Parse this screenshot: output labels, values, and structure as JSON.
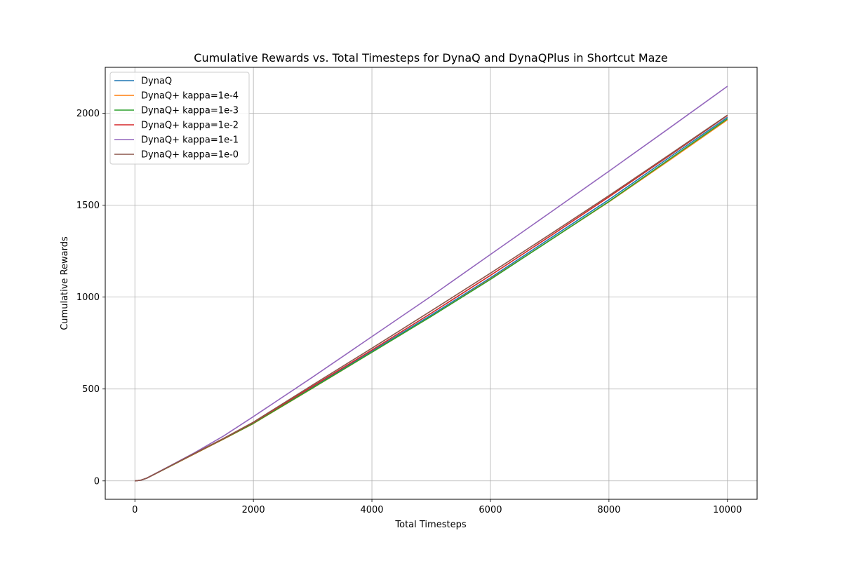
{
  "chart_data": {
    "type": "line",
    "title": "Cumulative Rewards vs. Total Timesteps for DynaQ and DynaQPlus in Shortcut Maze",
    "xlabel": "Total Timesteps",
    "ylabel": "Cumulative Rewards",
    "xlim": [
      -500,
      10500
    ],
    "ylim": [
      -100,
      2250
    ],
    "xticks": [
      0,
      2000,
      4000,
      6000,
      8000,
      10000
    ],
    "yticks": [
      0,
      500,
      1000,
      1500,
      2000
    ],
    "grid": true,
    "legend_position": "top-left",
    "series": [
      {
        "name": "DynaQ",
        "color": "#1f77b4",
        "x": [
          0,
          100,
          200,
          500,
          1000,
          1500,
          2000,
          3000,
          4000,
          5000,
          6000,
          7000,
          8000,
          9000,
          10000
        ],
        "y": [
          0,
          4,
          15,
          65,
          148,
          230,
          315,
          510,
          705,
          902,
          1105,
          1318,
          1530,
          1755,
          1978
        ]
      },
      {
        "name": "DynaQ+ kappa=1e-4",
        "color": "#ff7f0e",
        "x": [
          0,
          100,
          200,
          500,
          1000,
          1500,
          2000,
          3000,
          4000,
          5000,
          6000,
          7000,
          8000,
          9000,
          10000
        ],
        "y": [
          0,
          4,
          15,
          64,
          146,
          228,
          312,
          505,
          700,
          895,
          1098,
          1308,
          1518,
          1740,
          1965
        ]
      },
      {
        "name": "DynaQ+ kappa=1e-3",
        "color": "#2ca02c",
        "x": [
          0,
          100,
          200,
          500,
          1000,
          1500,
          2000,
          3000,
          4000,
          5000,
          6000,
          7000,
          8000,
          9000,
          10000
        ],
        "y": [
          0,
          4,
          15,
          64,
          147,
          229,
          313,
          506,
          700,
          895,
          1096,
          1308,
          1520,
          1745,
          1970
        ]
      },
      {
        "name": "DynaQ+ kappa=1e-2",
        "color": "#d62728",
        "x": [
          0,
          100,
          200,
          500,
          1000,
          1500,
          2000,
          3000,
          4000,
          5000,
          6000,
          7000,
          8000,
          9000,
          10000
        ],
        "y": [
          0,
          4,
          15,
          65,
          148,
          231,
          318,
          515,
          712,
          912,
          1118,
          1330,
          1545,
          1765,
          1988
        ]
      },
      {
        "name": "DynaQ+ kappa=1e-1",
        "color": "#9467bd",
        "x": [
          0,
          100,
          200,
          500,
          1000,
          1500,
          2000,
          3000,
          4000,
          5000,
          6000,
          7000,
          8000,
          9000,
          10000
        ],
        "y": [
          0,
          4,
          15,
          66,
          152,
          245,
          350,
          565,
          785,
          1005,
          1232,
          1458,
          1685,
          1915,
          2147
        ]
      },
      {
        "name": "DynaQ+ kappa=1e-0",
        "color": "#8c564b",
        "x": [
          0,
          100,
          200,
          500,
          1000,
          1500,
          2000,
          3000,
          4000,
          5000,
          6000,
          7000,
          8000,
          9000,
          10000
        ],
        "y": [
          0,
          4,
          15,
          65,
          149,
          232,
          320,
          522,
          722,
          925,
          1130,
          1340,
          1552,
          1770,
          1990
        ]
      }
    ]
  }
}
